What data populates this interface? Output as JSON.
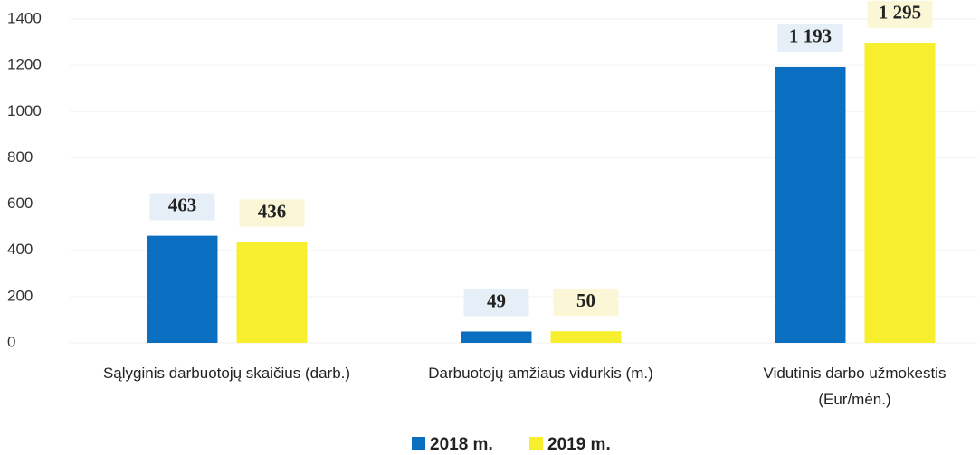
{
  "chart_data": {
    "type": "bar",
    "categories": [
      "Sąlyginis darbuotojų skaičius (darb.)",
      "Darbuotojų amžiaus vidurkis (m.)",
      "Vidutinis darbo užmokestis (Eur/mėn.)"
    ],
    "series": [
      {
        "name": "2018 m.",
        "color": "#0b6fc1",
        "values": [
          463,
          49,
          1193
        ],
        "value_labels": [
          "463",
          "49",
          "1 193"
        ]
      },
      {
        "name": "2019 m.",
        "color": "#f7ef2e",
        "values": [
          436,
          50,
          1295
        ],
        "value_labels": [
          "436",
          "50",
          "1 295"
        ]
      }
    ],
    "ylim": [
      0,
      1400
    ],
    "yticks": [
      0,
      200,
      400,
      600,
      800,
      1000,
      1200,
      1400
    ],
    "grid": true,
    "legend": "bottom"
  }
}
